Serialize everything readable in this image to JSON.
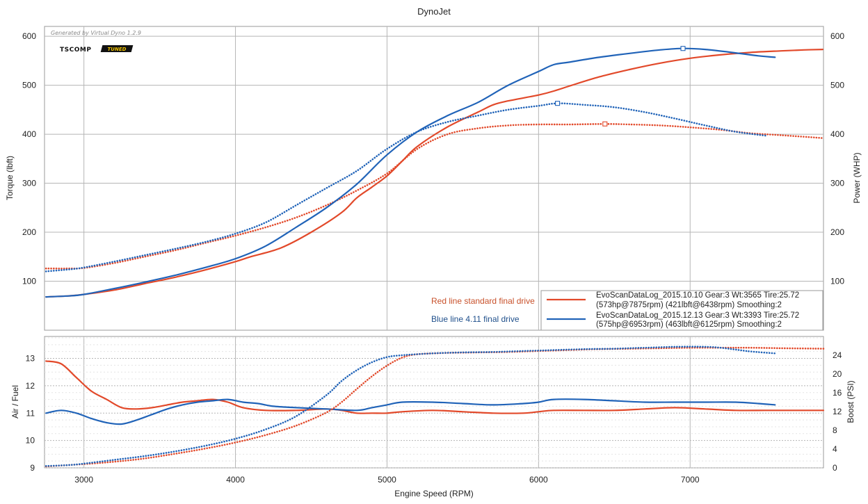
{
  "chart_title": "DynoJet",
  "watermark": "Generated by Virtual Dyno 1.2.9",
  "logo": {
    "brand": "TSCOMP",
    "badge": "TUNED"
  },
  "colors": {
    "red": "#e2492a",
    "blue": "#2063b8",
    "grid": "#b5b5b5",
    "minor": "#e4e4e4"
  },
  "annotations": {
    "red_note": "Red line standard final drive",
    "blue_note": "Blue line 4.11 final drive",
    "red_color": "#c8502a",
    "blue_color": "#20508c"
  },
  "legend": [
    {
      "line1": "EvoScanDataLog_2015.10.10 Gear:3 Wt:3565 Tire:25.72",
      "line2": "(573hp@7875rpm) (421lbft@6438rpm) Smoothing:2",
      "color": "#e2492a"
    },
    {
      "line1": "EvoScanDataLog_2015.12.13 Gear:3 Wt:3393 Tire:25.72",
      "line2": "(575hp@6953rpm) (463lbft@6125rpm) Smoothing:2",
      "color": "#2063b8"
    }
  ],
  "chart_data": [
    {
      "type": "line",
      "title": "DynoJet",
      "xlabel": "Engine Speed (RPM)",
      "ylabel": "Torque (lbft)",
      "y2label": "Power (WHP)",
      "xlim": [
        2740,
        7880
      ],
      "ylim": [
        0,
        620
      ],
      "xticks": [
        3000,
        4000,
        5000,
        6000,
        7000
      ],
      "yticks": [
        100,
        200,
        300,
        400,
        500,
        600
      ],
      "series": [
        {
          "name": "Power red (standard final drive)",
          "color": "#e2492a",
          "style": "solid",
          "x": [
            2750,
            2900,
            3000,
            3200,
            3400,
            3600,
            3800,
            4000,
            4100,
            4300,
            4500,
            4700,
            4800,
            4900,
            5000,
            5100,
            5200,
            5400,
            5600,
            5700,
            5800,
            6000,
            6100,
            6200,
            6400,
            6600,
            6800,
            7000,
            7200,
            7400,
            7600,
            7750,
            7875
          ],
          "y": [
            68,
            70,
            73,
            82,
            95,
            108,
            123,
            140,
            150,
            168,
            200,
            240,
            270,
            292,
            315,
            345,
            375,
            415,
            445,
            460,
            468,
            480,
            488,
            498,
            517,
            532,
            545,
            555,
            562,
            567,
            570,
            572,
            573
          ]
        },
        {
          "name": "Torque red (standard final drive)",
          "color": "#e2492a",
          "style": "dotted",
          "x": [
            2750,
            2900,
            3000,
            3200,
            3400,
            3600,
            3800,
            4000,
            4200,
            4400,
            4600,
            4800,
            5000,
            5200,
            5400,
            5600,
            5800,
            6000,
            6200,
            6438,
            6600,
            6800,
            7000,
            7200,
            7400,
            7600,
            7880
          ],
          "y": [
            126,
            126,
            127,
            137,
            150,
            163,
            178,
            193,
            210,
            230,
            255,
            285,
            320,
            370,
            400,
            412,
            418,
            420,
            420,
            421,
            420,
            418,
            414,
            409,
            402,
            398,
            392
          ]
        },
        {
          "name": "Power blue (4.11 final drive)",
          "color": "#2063b8",
          "style": "solid",
          "x": [
            2750,
            2900,
            3000,
            3200,
            3400,
            3600,
            3800,
            4000,
            4200,
            4400,
            4600,
            4800,
            5000,
            5200,
            5400,
            5600,
            5800,
            6000,
            6100,
            6200,
            6400,
            6600,
            6800,
            6953,
            7100,
            7300,
            7450,
            7560
          ],
          "y": [
            68,
            70,
            73,
            85,
            98,
            112,
            128,
            146,
            172,
            210,
            250,
            298,
            358,
            405,
            438,
            465,
            500,
            528,
            542,
            547,
            557,
            565,
            572,
            575,
            573,
            566,
            560,
            557
          ]
        },
        {
          "name": "Torque blue (4.11 final drive)",
          "color": "#2063b8",
          "style": "dotted",
          "x": [
            2750,
            2900,
            3000,
            3200,
            3400,
            3600,
            3800,
            4000,
            4200,
            4400,
            4600,
            4800,
            5000,
            5200,
            5400,
            5600,
            5800,
            6000,
            6125,
            6300,
            6500,
            6700,
            6900,
            7100,
            7300,
            7500
          ],
          "y": [
            120,
            124,
            128,
            140,
            153,
            166,
            180,
            197,
            220,
            255,
            290,
            325,
            370,
            405,
            425,
            438,
            450,
            458,
            463,
            460,
            455,
            445,
            432,
            418,
            405,
            397
          ]
        }
      ]
    },
    {
      "type": "line",
      "xlabel": "Engine Speed (RPM)",
      "ylabel": "Air / Fuel",
      "y2label": "Boost (PSI)",
      "xlim": [
        2740,
        7880
      ],
      "ylim": [
        9,
        13.8
      ],
      "y2lim": [
        0,
        28
      ],
      "yticks": [
        9,
        10,
        11,
        12,
        13
      ],
      "y2ticks": [
        0,
        4,
        8,
        12,
        16,
        20,
        24
      ],
      "series": [
        {
          "name": "Air/Fuel red",
          "color": "#e2492a",
          "style": "solid",
          "axis": "left",
          "x": [
            2750,
            2850,
            2950,
            3050,
            3150,
            3250,
            3350,
            3450,
            3550,
            3650,
            3750,
            3850,
            3950,
            4050,
            4200,
            4400,
            4600,
            4700,
            4800,
            4900,
            5000,
            5100,
            5300,
            5500,
            5700,
            5900,
            6000,
            6100,
            6300,
            6500,
            6700,
            6900,
            7100,
            7300,
            7500,
            7700,
            7880
          ],
          "y": [
            12.9,
            12.8,
            12.3,
            11.8,
            11.5,
            11.2,
            11.15,
            11.2,
            11.3,
            11.4,
            11.45,
            11.5,
            11.4,
            11.2,
            11.1,
            11.1,
            11.15,
            11.1,
            11.0,
            11.0,
            11.0,
            11.05,
            11.1,
            11.05,
            11.0,
            11.0,
            11.05,
            11.1,
            11.1,
            11.1,
            11.15,
            11.2,
            11.15,
            11.1,
            11.1,
            11.1,
            11.1
          ]
        },
        {
          "name": "Air/Fuel blue",
          "color": "#2063b8",
          "style": "solid",
          "axis": "left",
          "x": [
            2750,
            2850,
            2950,
            3050,
            3150,
            3250,
            3350,
            3450,
            3550,
            3650,
            3750,
            3850,
            3950,
            4050,
            4150,
            4250,
            4400,
            4600,
            4800,
            4900,
            5000,
            5100,
            5300,
            5500,
            5700,
            5900,
            6000,
            6100,
            6300,
            6500,
            6700,
            6900,
            7100,
            7300,
            7450,
            7560
          ],
          "y": [
            11.0,
            11.1,
            11.0,
            10.8,
            10.65,
            10.6,
            10.75,
            10.95,
            11.15,
            11.3,
            11.4,
            11.45,
            11.5,
            11.4,
            11.35,
            11.25,
            11.2,
            11.15,
            11.1,
            11.2,
            11.3,
            11.4,
            11.4,
            11.35,
            11.3,
            11.35,
            11.4,
            11.5,
            11.5,
            11.45,
            11.4,
            11.4,
            11.4,
            11.4,
            11.35,
            11.3
          ]
        },
        {
          "name": "Boost red",
          "color": "#e2492a",
          "style": "dotted",
          "axis": "right",
          "x": [
            2750,
            3000,
            3200,
            3400,
            3600,
            3800,
            4000,
            4200,
            4400,
            4600,
            4700,
            4800,
            4900,
            5000,
            5100,
            5200,
            5400,
            5600,
            5800,
            6000,
            6200,
            6400,
            6600,
            6800,
            7000,
            7200,
            7400,
            7600,
            7880
          ],
          "y": [
            0.3,
            0.8,
            1.3,
            2.0,
            3.0,
            4.1,
            5.4,
            7.0,
            9.0,
            11.8,
            14.0,
            16.8,
            19.5,
            21.8,
            23.5,
            24.2,
            24.5,
            24.6,
            24.7,
            24.9,
            25.1,
            25.3,
            25.4,
            25.5,
            25.6,
            25.6,
            25.6,
            25.5,
            25.4
          ]
        },
        {
          "name": "Boost blue",
          "color": "#2063b8",
          "style": "dotted",
          "axis": "right",
          "x": [
            2750,
            2900,
            3000,
            3200,
            3400,
            3600,
            3800,
            4000,
            4200,
            4400,
            4600,
            4700,
            4800,
            4900,
            5000,
            5100,
            5300,
            5500,
            5700,
            5900,
            6100,
            6300,
            6500,
            6700,
            6900,
            7100,
            7200,
            7300,
            7400,
            7560
          ],
          "y": [
            0.4,
            0.6,
            0.9,
            1.7,
            2.5,
            3.5,
            4.7,
            6.2,
            8.2,
            11.0,
            15.5,
            18.5,
            20.8,
            22.5,
            23.6,
            24.0,
            24.4,
            24.6,
            24.7,
            24.9,
            25.1,
            25.3,
            25.4,
            25.6,
            25.8,
            25.8,
            25.6,
            25.2,
            24.8,
            24.4
          ]
        }
      ]
    }
  ]
}
